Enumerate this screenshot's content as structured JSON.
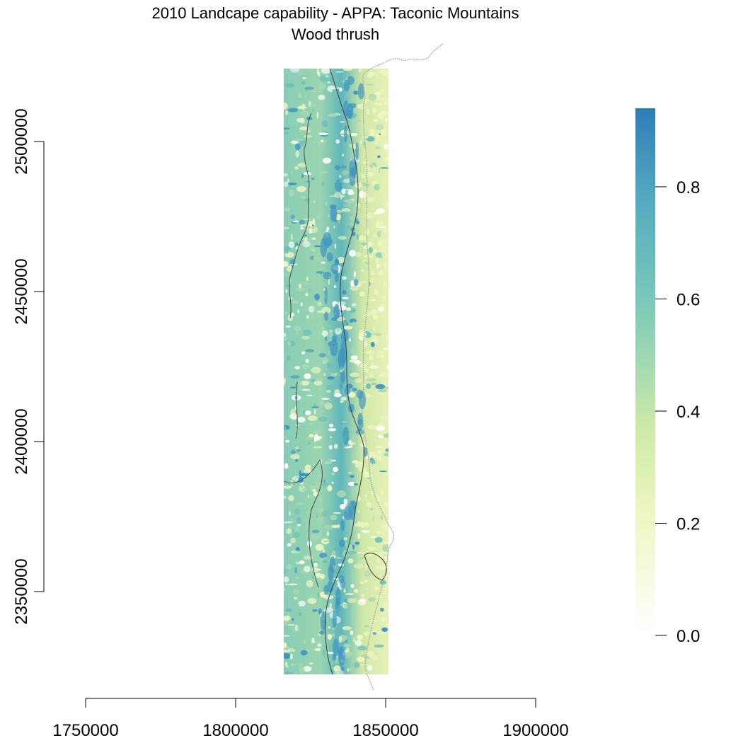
{
  "title": "2010 Landcape capability - APPA: Taconic Mountains",
  "subtitle": "Wood thrush",
  "x_axis": {
    "ticks": [
      "1750000",
      "1800000",
      "1850000",
      "1900000"
    ]
  },
  "y_axis": {
    "ticks": [
      "2350000",
      "2400000",
      "2450000",
      "2500000"
    ]
  },
  "legend": {
    "ticks": [
      "0.0",
      "0.2",
      "0.4",
      "0.6",
      "0.8"
    ],
    "range": [
      0,
      0.94
    ],
    "colors": [
      "#ffffff",
      "#f0f7c4",
      "#c8e6a6",
      "#7dcbb8",
      "#52aac0",
      "#2b7fb8"
    ]
  },
  "map_colors": {
    "low": "#eef5c0",
    "mid": "#a8d8b2",
    "high": "#6fc0b8",
    "peak": "#3f95c0",
    "boundary": "#333333",
    "state_line": "#a8a8a8"
  }
}
